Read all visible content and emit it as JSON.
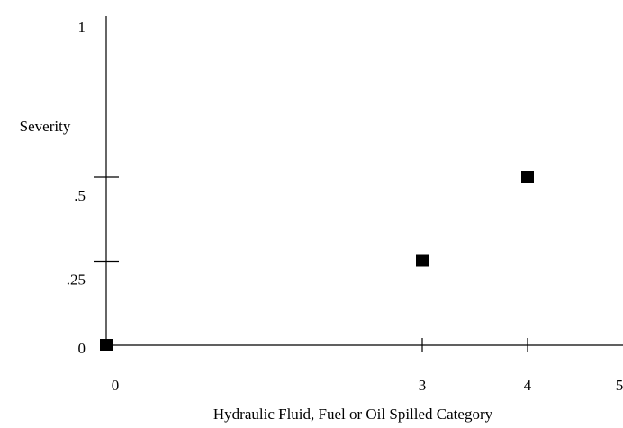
{
  "chart_data": {
    "type": "scatter",
    "x_label": "Hydraulic Fluid, Fuel or Oil Spilled Category",
    "y_label": "Severity",
    "x": [
      0,
      3,
      4
    ],
    "values": [
      0,
      0.25,
      0.5
    ],
    "color": "#000000",
    "xlim": [
      0,
      5
    ],
    "xticks": [
      0,
      3,
      4,
      5
    ],
    "ylim": [
      0,
      1
    ],
    "yticks": [
      0,
      {
        "value": 0.25,
        "label": ".25"
      },
      {
        "value": 0.5,
        "label": ".5"
      },
      1
    ]
  }
}
